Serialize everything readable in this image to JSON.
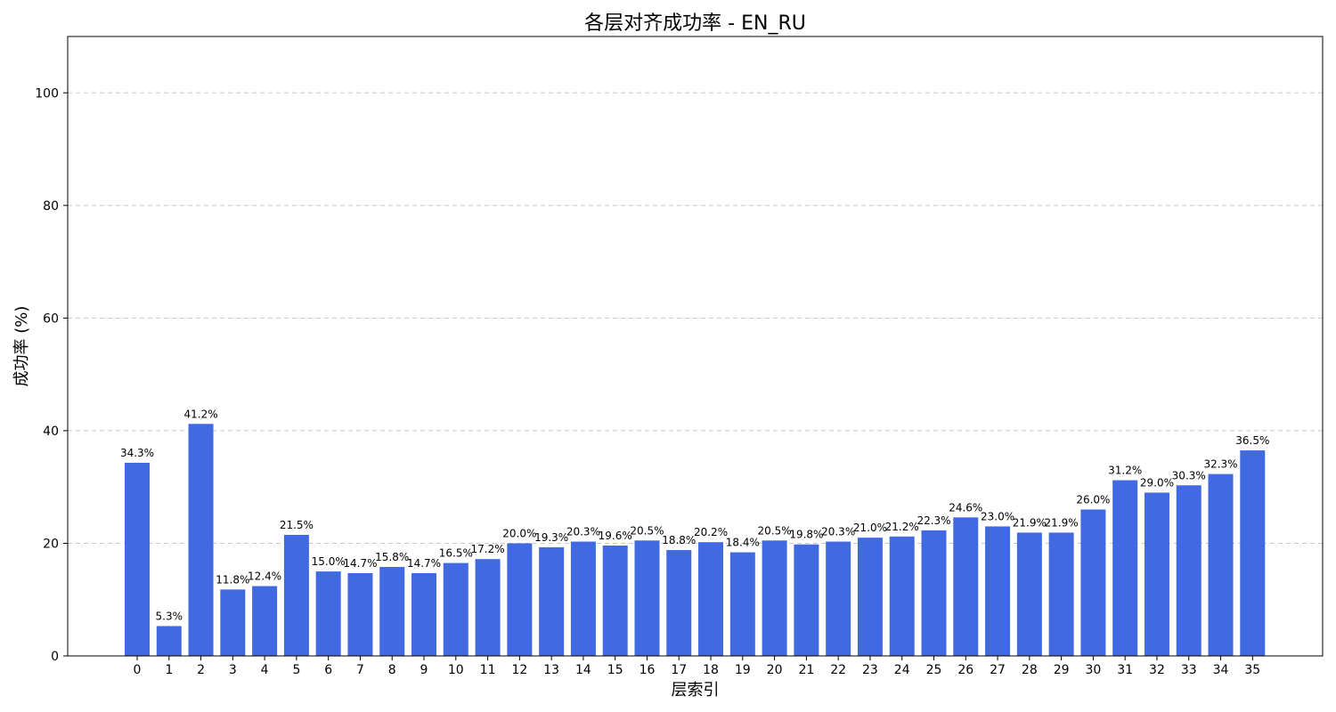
{
  "chart_data": {
    "type": "bar",
    "title": "各层对齐成功率 - EN_RU",
    "xlabel": "层索引",
    "ylabel": "成功率 (%)",
    "categories": [
      "0",
      "1",
      "2",
      "3",
      "4",
      "5",
      "6",
      "7",
      "8",
      "9",
      "10",
      "11",
      "12",
      "13",
      "14",
      "15",
      "16",
      "17",
      "18",
      "19",
      "20",
      "21",
      "22",
      "23",
      "24",
      "25",
      "26",
      "27",
      "28",
      "29",
      "30",
      "31",
      "32",
      "33",
      "34",
      "35"
    ],
    "values": [
      34.3,
      5.3,
      41.2,
      11.8,
      12.4,
      21.5,
      15.0,
      14.7,
      15.8,
      14.7,
      16.5,
      17.2,
      20.0,
      19.3,
      20.3,
      19.6,
      20.5,
      18.8,
      20.2,
      18.4,
      20.5,
      19.8,
      20.3,
      21.0,
      21.2,
      22.3,
      24.6,
      23.0,
      21.9,
      21.9,
      26.0,
      31.2,
      29.0,
      30.3,
      32.3,
      36.5
    ],
    "data_labels": [
      "34.3%",
      "5.3%",
      "41.2%",
      "11.8%",
      "12.4%",
      "21.5%",
      "15.0%",
      "14.7%",
      "15.8%",
      "14.7%",
      "16.5%",
      "17.2%",
      "20.0%",
      "19.3%",
      "20.3%",
      "19.6%",
      "20.5%",
      "18.8%",
      "20.2%",
      "18.4%",
      "20.5%",
      "19.8%",
      "20.3%",
      "21.0%",
      "21.2%",
      "22.3%",
      "24.6%",
      "23.0%",
      "21.9%",
      "21.9%",
      "26.0%",
      "31.2%",
      "29.0%",
      "30.3%",
      "32.3%",
      "36.5%"
    ],
    "ylim": [
      0,
      110
    ],
    "yticks": [
      0,
      20,
      40,
      60,
      80,
      100
    ],
    "grid": "y-dashed",
    "bar_color": "#4169e1"
  }
}
